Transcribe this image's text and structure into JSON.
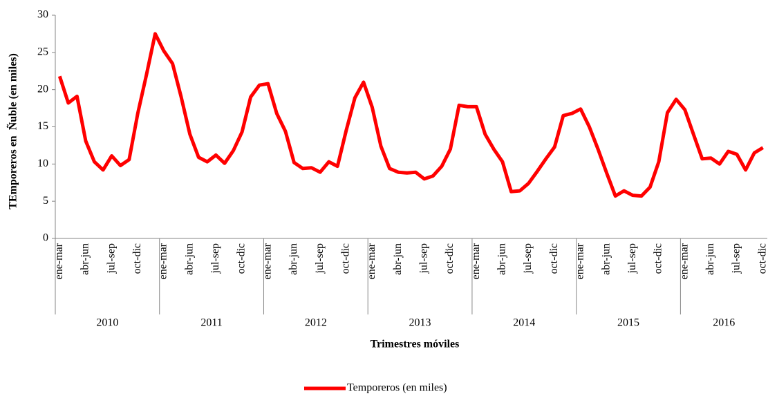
{
  "chart_data": {
    "type": "line",
    "y_label": "TEmporeros en  Ñuble (en miles)",
    "x_label": "Trimestres móviles",
    "categories": [
      "ene-mar",
      null,
      null,
      "abr-jun",
      null,
      null,
      "jul-sep",
      null,
      null,
      "oct-dic",
      null,
      null,
      "ene-mar",
      null,
      null,
      "abr-jun",
      null,
      null,
      "jul-sep",
      null,
      null,
      "oct-dic",
      null,
      null,
      "ene-mar",
      null,
      null,
      "abr-jun",
      null,
      null,
      "jul-sep",
      null,
      null,
      "oct-dic",
      null,
      null,
      "ene-mar",
      null,
      null,
      "abr-jun",
      null,
      null,
      "jul-sep",
      null,
      null,
      "oct-dic",
      null,
      null,
      "ene-mar",
      null,
      null,
      "abr-jun",
      null,
      null,
      "jul-sep",
      null,
      null,
      "oct-dic",
      null,
      null,
      "ene-mar",
      null,
      null,
      "abr-jun",
      null,
      null,
      "jul-sep",
      null,
      null,
      "oct-dic",
      null,
      null,
      "ene-mar",
      null,
      null,
      "abr-jun",
      null,
      null,
      "jul-sep",
      null,
      null,
      "oct-dic"
    ],
    "years": [
      "2010",
      "2011",
      "2012",
      "2013",
      "2014",
      "2015",
      "2016"
    ],
    "series": [
      {
        "name": "Temporeros (en miles)",
        "color": "#ff0000",
        "values": [
          21.8,
          18.2,
          19.1,
          13.1,
          10.3,
          9.2,
          11.1,
          9.8,
          10.6,
          16.8,
          22.0,
          27.5,
          25.2,
          23.5,
          19.0,
          14.0,
          10.9,
          10.3,
          11.2,
          10.1,
          11.8,
          14.3,
          19.0,
          20.6,
          20.8,
          16.8,
          14.4,
          10.2,
          9.4,
          9.5,
          8.9,
          10.3,
          9.7,
          14.5,
          18.9,
          21.0,
          17.6,
          12.4,
          9.4,
          8.9,
          8.8,
          8.9,
          8.0,
          8.4,
          9.7,
          12.0,
          17.9,
          17.7,
          17.7,
          14.0,
          12.0,
          10.3,
          6.3,
          6.4,
          7.4,
          9.0,
          10.7,
          12.3,
          16.5,
          16.8,
          17.4,
          15.0,
          12.0,
          8.8,
          5.7,
          6.4,
          5.8,
          5.7,
          6.9,
          10.3,
          16.9,
          18.7,
          17.3,
          14.0,
          10.7,
          10.8,
          10.0,
          11.7,
          11.3,
          9.2,
          11.5,
          12.2
        ]
      }
    ],
    "ylim": [
      0,
      30
    ],
    "yticks": [
      0,
      5,
      10,
      15,
      20,
      25,
      30
    ],
    "legend": "bottom",
    "grid": false
  }
}
